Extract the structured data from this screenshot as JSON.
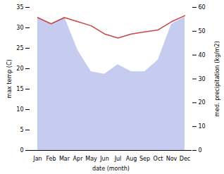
{
  "chart_data": {
    "type": "line",
    "categories": [
      "Jan",
      "Feb",
      "Mar",
      "Apr",
      "May",
      "Jun",
      "Jul",
      "Aug",
      "Sep",
      "Oct",
      "Nov",
      "Dec"
    ],
    "series": [
      {
        "type": "area",
        "axis": "y2",
        "color": "#c5ccf0",
        "values": [
          56.0,
          53.0,
          56.0,
          42.0,
          33.0,
          32.0,
          36.0,
          33.0,
          33.0,
          38.0,
          53.0,
          56.0
        ]
      },
      {
        "type": "line",
        "color": "#cc4444",
        "values": [
          32.5,
          31.0,
          32.5,
          31.5,
          30.5,
          28.5,
          27.5,
          28.5,
          29.0,
          29.5,
          31.5,
          33.0
        ]
      }
    ],
    "xlabel": "date (month)",
    "ylabel": "max temp (C)",
    "y2label": "med. precipitation (kg/m2)",
    "ylim": [
      0,
      35
    ],
    "yticks": [
      0,
      5,
      10,
      15,
      20,
      25,
      30,
      35
    ],
    "y2lim": [
      0,
      60
    ],
    "y2ticks": [
      0,
      10,
      20,
      30,
      40,
      50,
      60
    ],
    "grid": false
  }
}
